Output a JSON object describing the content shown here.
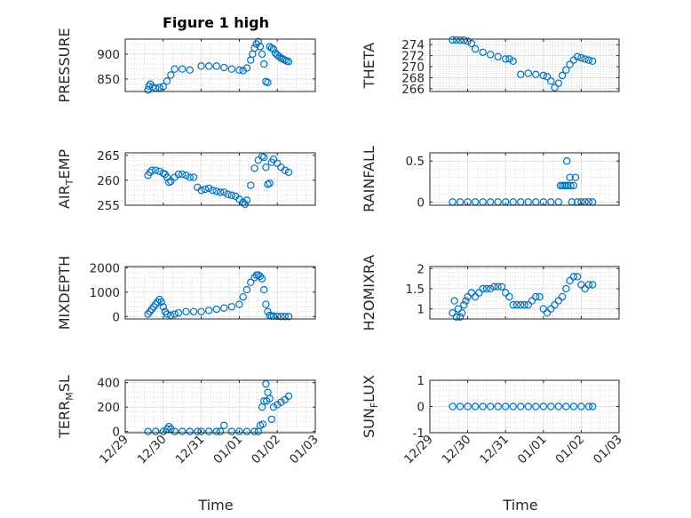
{
  "figure": {
    "title": "Figure 1 high",
    "marker_color": "#0072bd",
    "x_axis": {
      "label": "Time",
      "ticks": [
        "12/29",
        "12/30",
        "12/31",
        "01/01",
        "01/02",
        "01/03"
      ],
      "range_days": [
        0,
        5
      ]
    }
  },
  "chart_data": [
    {
      "type": "scatter",
      "ylabel": "PRESSURE",
      "ylim": [
        825,
        930
      ],
      "yticks": [
        850,
        900
      ],
      "ytick_labels": [
        "850",
        "900"
      ],
      "grid": true,
      "x": [
        0.6,
        0.62,
        0.66,
        0.72,
        0.8,
        0.9,
        1,
        1.1,
        1.2,
        1.3,
        1.5,
        1.7,
        2,
        2.2,
        2.4,
        2.6,
        2.8,
        3,
        3.1,
        3.2,
        3.3,
        3.35,
        3.4,
        3.45,
        3.5,
        3.55,
        3.6,
        3.65,
        3.7,
        3.75,
        3.8,
        3.85,
        3.9,
        3.95,
        4,
        4.05,
        4.1,
        4.15,
        4.2,
        4.25,
        4.3
      ],
      "y": [
        828,
        836,
        840,
        834,
        832,
        833,
        835,
        846,
        858,
        870,
        870,
        868,
        876,
        876,
        876,
        873,
        870,
        868,
        867,
        872,
        888,
        900,
        912,
        920,
        925,
        915,
        900,
        880,
        845,
        843,
        915,
        912,
        910,
        902,
        898,
        895,
        892,
        890,
        888,
        886,
        885
      ]
    },
    {
      "type": "scatter",
      "ylabel": "THETA",
      "ylim": [
        265.5,
        275
      ],
      "yticks": [
        266,
        268,
        270,
        272,
        274
      ],
      "ytick_labels": [
        "266",
        "268",
        "270",
        "272",
        "274"
      ],
      "grid": true,
      "x": [
        0.6,
        0.7,
        0.8,
        0.9,
        1,
        1.1,
        1.2,
        1.4,
        1.6,
        1.8,
        2,
        2.1,
        2.2,
        2.4,
        2.6,
        2.8,
        3,
        3.1,
        3.2,
        3.3,
        3.4,
        3.5,
        3.6,
        3.7,
        3.8,
        3.9,
        4,
        4.1,
        4.2,
        4.3
      ],
      "y": [
        275,
        275,
        274.8,
        274.8,
        274.6,
        274.2,
        273.2,
        272.6,
        272.2,
        271.8,
        271.4,
        271.4,
        271,
        268.6,
        268.8,
        268.6,
        268.4,
        268.2,
        267.4,
        266.2,
        267,
        268.4,
        269.4,
        270.4,
        271.2,
        271.8,
        271.6,
        271.4,
        271.2,
        271
      ]
    },
    {
      "type": "scatter",
      "ylabel": "AIR_TEMP",
      "ylim": [
        255,
        265.5
      ],
      "yticks": [
        255,
        260,
        265
      ],
      "ytick_labels": [
        "255",
        "260",
        "265"
      ],
      "grid": true,
      "x": [
        0.6,
        0.65,
        0.7,
        0.8,
        0.9,
        1,
        1.05,
        1.1,
        1.15,
        1.2,
        1.3,
        1.4,
        1.5,
        1.6,
        1.7,
        1.8,
        1.9,
        2,
        2.1,
        2.2,
        2.3,
        2.4,
        2.5,
        2.6,
        2.7,
        2.8,
        2.9,
        3,
        3.1,
        3.15,
        3.2,
        3.3,
        3.4,
        3.5,
        3.6,
        3.65,
        3.7,
        3.75,
        3.8,
        3.85,
        3.9,
        4,
        4.1,
        4.2,
        4.3
      ],
      "y": [
        261,
        261.6,
        262,
        262,
        261.8,
        261.4,
        261.2,
        260.6,
        259.6,
        259.8,
        260.6,
        261.2,
        261.2,
        261,
        260.6,
        260.6,
        258.6,
        258,
        258.2,
        258.4,
        258,
        257.8,
        257.6,
        257.6,
        257.2,
        257,
        256.8,
        256.2,
        255.6,
        255.2,
        256,
        259,
        262.4,
        264,
        264.8,
        264.6,
        262.6,
        259.2,
        259.4,
        263.6,
        264.2,
        263.4,
        262.6,
        262,
        261.6
      ]
    },
    {
      "type": "scatter",
      "ylabel": "RAINFALL",
      "ylim": [
        -0.04,
        0.6
      ],
      "yticks": [
        0,
        0.5
      ],
      "ytick_labels": [
        "0",
        "0.5"
      ],
      "grid": true,
      "x": [
        0.6,
        0.8,
        1,
        1.2,
        1.4,
        1.6,
        1.8,
        2,
        2.2,
        2.4,
        2.6,
        2.8,
        3,
        3.2,
        3.4,
        3.45,
        3.5,
        3.55,
        3.6,
        3.62,
        3.65,
        3.7,
        3.72,
        3.75,
        3.8,
        3.85,
        3.9,
        4,
        4.1,
        4.2,
        4.3
      ],
      "y": [
        0,
        0,
        0,
        0,
        0,
        0,
        0,
        0,
        0,
        0,
        0,
        0,
        0,
        0,
        0,
        0.2,
        0.2,
        0.2,
        0.2,
        0.5,
        0.2,
        0.3,
        0.2,
        0,
        0.2,
        0.3,
        0,
        0,
        0,
        0,
        0
      ]
    },
    {
      "type": "scatter",
      "ylabel": "MIXDEPTH",
      "ylim": [
        -100,
        2050
      ],
      "yticks": [
        0,
        1000,
        2000
      ],
      "ytick_labels": [
        "0",
        "1000",
        "2000"
      ],
      "grid": true,
      "x": [
        0.6,
        0.65,
        0.7,
        0.75,
        0.8,
        0.85,
        0.9,
        0.95,
        1,
        1.05,
        1.1,
        1.2,
        1.3,
        1.4,
        1.6,
        1.8,
        2,
        2.2,
        2.4,
        2.6,
        2.8,
        3,
        3.1,
        3.2,
        3.3,
        3.4,
        3.45,
        3.5,
        3.55,
        3.6,
        3.65,
        3.7,
        3.75,
        3.8,
        3.85,
        3.9,
        4,
        4.1,
        4.2,
        4.3
      ],
      "y": [
        100,
        200,
        300,
        400,
        500,
        600,
        700,
        600,
        400,
        200,
        100,
        50,
        100,
        150,
        200,
        200,
        200,
        250,
        300,
        350,
        400,
        500,
        800,
        1100,
        1400,
        1600,
        1700,
        1700,
        1650,
        1550,
        1100,
        500,
        200,
        50,
        20,
        20,
        10,
        0,
        0,
        0
      ]
    },
    {
      "type": "scatter",
      "ylabel": "H2OMIXRA",
      "ylim": [
        0.75,
        2.05
      ],
      "yticks": [
        1,
        1.5,
        2
      ],
      "ytick_labels": [
        "1",
        "1.5",
        "2"
      ],
      "grid": true,
      "x": [
        0.6,
        0.65,
        0.7,
        0.75,
        0.8,
        0.85,
        0.9,
        0.95,
        1,
        1.1,
        1.2,
        1.3,
        1.4,
        1.5,
        1.6,
        1.7,
        1.8,
        1.9,
        2,
        2.1,
        2.2,
        2.3,
        2.4,
        2.5,
        2.6,
        2.7,
        2.8,
        2.9,
        3,
        3.1,
        3.2,
        3.3,
        3.4,
        3.5,
        3.6,
        3.7,
        3.8,
        3.9,
        4,
        4.1,
        4.2,
        4.3
      ],
      "y": [
        0.9,
        1.2,
        0.8,
        1,
        0.8,
        0.9,
        1.1,
        1.2,
        1.3,
        1.4,
        1.3,
        1.4,
        1.5,
        1.5,
        1.5,
        1.55,
        1.55,
        1.55,
        1.4,
        1.3,
        1.1,
        1.1,
        1.1,
        1.1,
        1.1,
        1.2,
        1.3,
        1.3,
        1,
        0.9,
        1,
        1.1,
        1.2,
        1.3,
        1.5,
        1.7,
        1.8,
        1.8,
        1.6,
        1.5,
        1.6,
        1.6
      ]
    },
    {
      "type": "scatter",
      "ylabel": "TERR_MSL",
      "ylim": [
        -10,
        420
      ],
      "yticks": [
        0,
        200,
        400
      ],
      "ytick_labels": [
        "0",
        "200",
        "400"
      ],
      "grid": true,
      "x": [
        0.6,
        0.8,
        1,
        1.1,
        1.15,
        1.2,
        1.3,
        1.5,
        1.7,
        1.9,
        2,
        2.2,
        2.4,
        2.5,
        2.6,
        2.8,
        3,
        3.2,
        3.4,
        3.5,
        3.55,
        3.6,
        3.62,
        3.65,
        3.7,
        3.72,
        3.75,
        3.8,
        3.85,
        3.9,
        4,
        4.1,
        4.2,
        4.3
      ],
      "y": [
        0,
        0,
        0,
        20,
        40,
        20,
        0,
        0,
        0,
        0,
        0,
        0,
        0,
        0,
        50,
        0,
        0,
        0,
        0,
        0,
        50,
        200,
        60,
        250,
        390,
        250,
        320,
        270,
        100,
        200,
        220,
        240,
        260,
        290
      ]
    },
    {
      "type": "scatter",
      "ylabel": "SUN_FLUX",
      "ylim": [
        -1,
        1
      ],
      "yticks": [
        -1,
        0,
        1
      ],
      "ytick_labels": [
        "-1",
        "0",
        "1"
      ],
      "grid": true,
      "x": [
        0.6,
        0.8,
        1,
        1.2,
        1.4,
        1.6,
        1.8,
        2,
        2.2,
        2.4,
        2.6,
        2.8,
        3,
        3.2,
        3.4,
        3.6,
        3.8,
        4,
        4.2,
        4.3
      ],
      "y": [
        0,
        0,
        0,
        0,
        0,
        0,
        0,
        0,
        0,
        0,
        0,
        0,
        0,
        0,
        0,
        0,
        0,
        0,
        0,
        0
      ]
    }
  ],
  "ylabel_display": [
    {
      "main": "PRESSURE",
      "sub": "",
      "tail": ""
    },
    {
      "main": "THETA",
      "sub": "",
      "tail": ""
    },
    {
      "main": "AIR",
      "sub": "T",
      "tail": "EMP"
    },
    {
      "main": "RAINFALL",
      "sub": "",
      "tail": ""
    },
    {
      "main": "MIXDEPTH",
      "sub": "",
      "tail": ""
    },
    {
      "main": "H2OMIXRA",
      "sub": "",
      "tail": ""
    },
    {
      "main": "TERR",
      "sub": "M",
      "tail": "SL"
    },
    {
      "main": "SUN",
      "sub": "F",
      "tail": "LUX"
    }
  ]
}
